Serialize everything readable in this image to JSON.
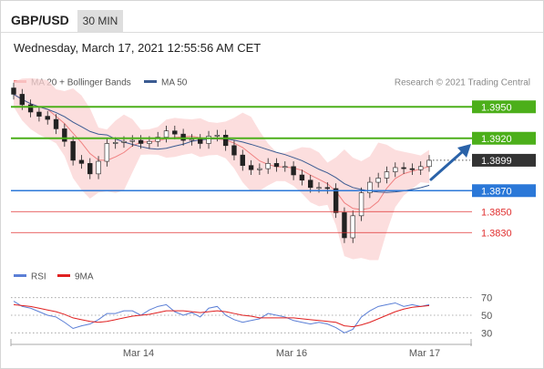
{
  "header": {
    "pair": "GBP/USD",
    "timeframe": "30 MIN",
    "timestamp": "Wednesday, March 17, 2021 12:55:56 AM CET"
  },
  "legend": {
    "ma20_label": "MA 20 + Bollinger Bands",
    "ma50_label": "MA 50",
    "research": "Research © 2021 Trading Central",
    "ma20_color": "#f08080",
    "ma50_color": "#3b5b92",
    "rsi_label": "RSI",
    "rsi_color": "#5b7fd6",
    "ma9_label": "9MA",
    "ma9_color": "#e02020"
  },
  "levels": [
    {
      "price": 1.395,
      "label": "1.3950",
      "kind": "resistance",
      "color": "#4caf1a"
    },
    {
      "price": 1.392,
      "label": "1.3920",
      "kind": "resistance",
      "color": "#4caf1a"
    },
    {
      "price": 1.3899,
      "label": "1.3899",
      "kind": "current",
      "color": "#333333"
    },
    {
      "price": 1.387,
      "label": "1.3870",
      "kind": "pivot",
      "color": "#2b78d8"
    },
    {
      "price": 1.385,
      "label": "1.3850",
      "kind": "support",
      "color": "#e03030"
    },
    {
      "price": 1.383,
      "label": "1.3830",
      "kind": "support",
      "color": "#e03030"
    }
  ],
  "chart_data": [
    {
      "type": "candlestick",
      "title": "GBP/USD 30 MIN",
      "x_ticks": [
        "Mar 14",
        "Mar 16",
        "Mar 17"
      ],
      "ylim": [
        1.3805,
        1.3985
      ],
      "series": [
        {
          "name": "MA 20 + Bollinger Bands",
          "close": [
            1.3962,
            1.3952,
            1.3945,
            1.3941,
            1.3938,
            1.3929,
            1.3917,
            1.3899,
            1.3896,
            1.3886,
            1.3898,
            1.3915,
            1.3916,
            1.3917,
            1.3918,
            1.3915,
            1.3917,
            1.3921,
            1.3927,
            1.3924,
            1.3918,
            1.3919,
            1.3915,
            1.3922,
            1.3923,
            1.3913,
            1.3904,
            1.3894,
            1.389,
            1.3891,
            1.3896,
            1.3893,
            1.3893,
            1.3885,
            1.388,
            1.3873,
            1.3873,
            1.3872,
            1.3849,
            1.3825,
            1.3846,
            1.3868,
            1.3878,
            1.3882,
            1.3888,
            1.3892,
            1.3891,
            1.389,
            1.3893,
            1.3899
          ]
        },
        {
          "name": "MA 50"
        }
      ]
    },
    {
      "type": "line",
      "ylim": [
        20,
        80
      ],
      "y_ticks": [
        70,
        50,
        30
      ],
      "series": [
        {
          "name": "RSI",
          "values": [
            66,
            60,
            58,
            54,
            50,
            48,
            42,
            35,
            38,
            40,
            45,
            52,
            52,
            55,
            55,
            50,
            56,
            60,
            62,
            54,
            50,
            53,
            48,
            58,
            60,
            50,
            45,
            42,
            44,
            46,
            52,
            50,
            48,
            44,
            42,
            40,
            42,
            40,
            36,
            30,
            34,
            48,
            55,
            60,
            62,
            64,
            60,
            62,
            60,
            62
          ]
        },
        {
          "name": "9MA",
          "values": [
            62,
            61,
            60,
            58,
            56,
            54,
            51,
            47,
            45,
            43,
            42,
            43,
            45,
            47,
            49,
            50,
            51,
            53,
            55,
            55,
            55,
            54,
            53,
            54,
            55,
            54,
            52,
            50,
            49,
            47,
            47,
            47,
            47,
            47,
            46,
            45,
            44,
            43,
            42,
            38,
            37,
            39,
            42,
            46,
            50,
            54,
            57,
            59,
            60,
            61
          ]
        }
      ]
    }
  ]
}
